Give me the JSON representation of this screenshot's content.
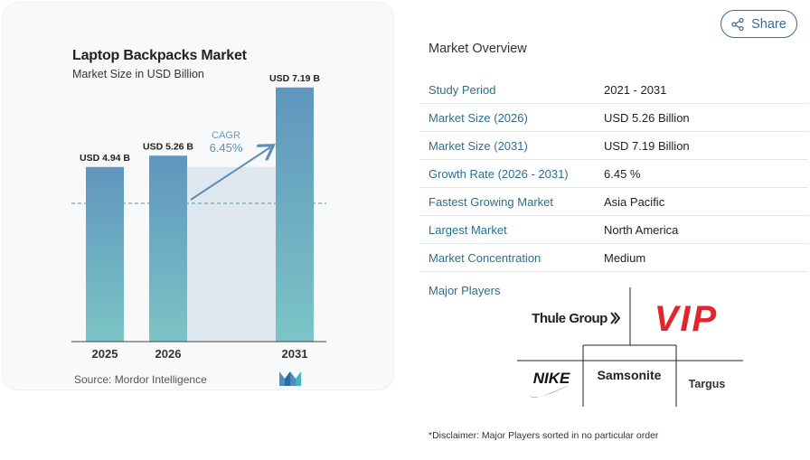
{
  "chart": {
    "title": "Laptop Backpacks Market",
    "subtitle": "Market Size in USD Billion",
    "source": "Source: Mordor Intelligence",
    "cagr_label": "CAGR",
    "cagr_value": "6.45%",
    "logo_name": "mordor-intelligence-logo"
  },
  "chart_data": {
    "type": "bar",
    "categories": [
      "2025",
      "2026",
      "2031"
    ],
    "values": [
      4.94,
      5.26,
      7.19
    ],
    "data_labels": [
      "USD 4.94 B",
      "USD 5.26 B",
      "USD 7.19 B"
    ],
    "title": "Laptop Backpacks Market",
    "subtitle": "Market Size in USD Billion",
    "xlabel": "",
    "ylabel": "",
    "ylim": [
      0,
      7.9
    ],
    "annotation": "CAGR 6.45%",
    "colors": {
      "bar_top": "#5f96bd",
      "bar_bottom": "#7cc4c6",
      "band": "#dfe7ef",
      "arrow": "#5a90b8"
    }
  },
  "share": {
    "label": "Share",
    "icon": "share-icon"
  },
  "overview": {
    "title": "Market Overview",
    "rows": [
      {
        "label": "Study Period",
        "value": "2021 - 2031"
      },
      {
        "label": "Market Size (2026)",
        "value": "USD 5.26 Billion"
      },
      {
        "label": "Market Size (2031)",
        "value": "USD 7.19 Billion"
      },
      {
        "label": "Growth Rate (2026 - 2031)",
        "value": "6.45 %"
      },
      {
        "label": "Fastest Growing Market",
        "value": "Asia Pacific"
      },
      {
        "label": "Largest Market",
        "value": "North America"
      },
      {
        "label": "Market Concentration",
        "value": "Medium"
      }
    ]
  },
  "players": {
    "label": "Major Players",
    "logos": {
      "thule": "Thule Group",
      "vip": "VIP",
      "nike": "NIKE",
      "samsonite": "Samsonite",
      "targus": "Targus"
    }
  },
  "disclaimer": "*Disclaimer: Major Players sorted in no particular order"
}
